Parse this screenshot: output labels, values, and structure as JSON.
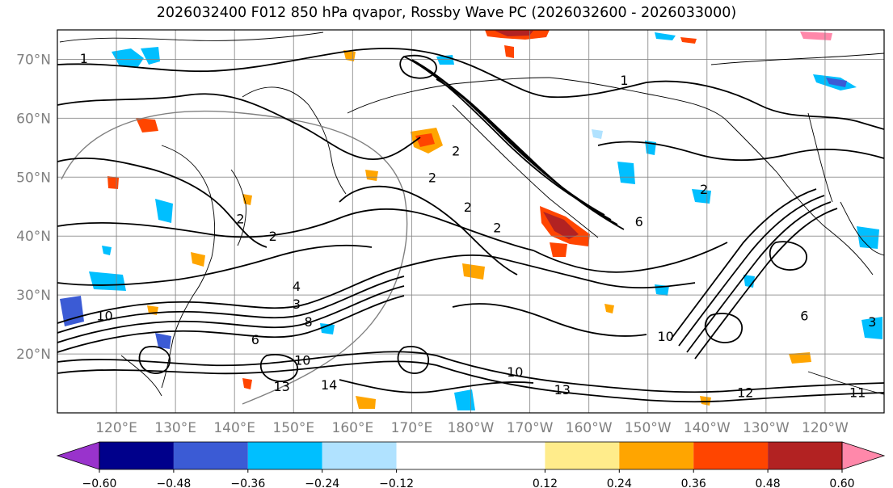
{
  "title": "2026032400 F012 850 hPa qvapor, Rossby Wave PC (2026032600 - 2026033000)",
  "map": {
    "lat_min": 10,
    "lat_max": 75,
    "lon_min": 110,
    "lon_max": 250,
    "lat_ticks": [
      {
        "value": 70,
        "label": "70°N"
      },
      {
        "value": 60,
        "label": "60°N"
      },
      {
        "value": 50,
        "label": "50°N"
      },
      {
        "value": 40,
        "label": "40°N"
      },
      {
        "value": 30,
        "label": "30°N"
      },
      {
        "value": 20,
        "label": "20°N"
      }
    ],
    "lon_ticks": [
      {
        "value": 120,
        "label": "120°E"
      },
      {
        "value": 130,
        "label": "130°E"
      },
      {
        "value": 140,
        "label": "140°E"
      },
      {
        "value": 150,
        "label": "150°E"
      },
      {
        "value": 160,
        "label": "160°E"
      },
      {
        "value": 170,
        "label": "170°E"
      },
      {
        "value": 180,
        "label": "180°W"
      },
      {
        "value": 190,
        "label": "170°W"
      },
      {
        "value": 200,
        "label": "160°W"
      },
      {
        "value": 210,
        "label": "150°W"
      },
      {
        "value": 220,
        "label": "140°W"
      },
      {
        "value": 230,
        "label": "130°W"
      },
      {
        "value": 240,
        "label": "120°W"
      }
    ],
    "contour_labels": [
      {
        "lon": 114.5,
        "lat": 70.2,
        "text": "1"
      },
      {
        "lon": 141.0,
        "lat": 43.0,
        "text": "2"
      },
      {
        "lon": 146.5,
        "lat": 40.0,
        "text": "2"
      },
      {
        "lon": 173.5,
        "lat": 50.0,
        "text": "2"
      },
      {
        "lon": 177.5,
        "lat": 54.5,
        "text": "2"
      },
      {
        "lon": 179.5,
        "lat": 45.0,
        "text": "2"
      },
      {
        "lon": 184.5,
        "lat": 41.5,
        "text": "2"
      },
      {
        "lon": 206.0,
        "lat": 66.5,
        "text": "1"
      },
      {
        "lon": 208.5,
        "lat": 42.5,
        "text": "6"
      },
      {
        "lon": 219.5,
        "lat": 48.0,
        "text": "2"
      },
      {
        "lon": 248.0,
        "lat": 25.5,
        "text": "3"
      },
      {
        "lon": 236.5,
        "lat": 26.5,
        "text": "6"
      },
      {
        "lon": 150.5,
        "lat": 31.5,
        "text": "4"
      },
      {
        "lon": 150.5,
        "lat": 28.5,
        "text": "3"
      },
      {
        "lon": 152.5,
        "lat": 25.5,
        "text": "8"
      },
      {
        "lon": 118.0,
        "lat": 26.5,
        "text": "10"
      },
      {
        "lon": 143.5,
        "lat": 22.5,
        "text": "6"
      },
      {
        "lon": 151.5,
        "lat": 19.0,
        "text": "10"
      },
      {
        "lon": 148.0,
        "lat": 14.5,
        "text": "13"
      },
      {
        "lon": 156.0,
        "lat": 14.8,
        "text": "14"
      },
      {
        "lon": 187.5,
        "lat": 17.0,
        "text": "10"
      },
      {
        "lon": 195.5,
        "lat": 14.0,
        "text": "13"
      },
      {
        "lon": 245.5,
        "lat": 13.5,
        "text": "11"
      },
      {
        "lon": 226.5,
        "lat": 13.5,
        "text": "12"
      },
      {
        "lon": 213.0,
        "lat": 23.0,
        "text": "10"
      }
    ]
  },
  "colorbar": {
    "bins": [
      {
        "from": -0.72,
        "to": -0.6,
        "color": "#9933cc"
      },
      {
        "from": -0.6,
        "to": -0.48,
        "color": "#00008b"
      },
      {
        "from": -0.48,
        "to": -0.36,
        "color": "#3b5bd5"
      },
      {
        "from": -0.36,
        "to": -0.24,
        "color": "#00bfff"
      },
      {
        "from": -0.24,
        "to": -0.12,
        "color": "#b0e2ff"
      },
      {
        "from": -0.12,
        "to": 0.12,
        "color": "#ffffff"
      },
      {
        "from": 0.12,
        "to": 0.24,
        "color": "#ffec8b"
      },
      {
        "from": 0.24,
        "to": 0.36,
        "color": "#ffa500"
      },
      {
        "from": 0.36,
        "to": 0.48,
        "color": "#ff4500"
      },
      {
        "from": 0.48,
        "to": 0.6,
        "color": "#b22222"
      },
      {
        "from": 0.6,
        "to": 0.72,
        "color": "#ff88aa"
      }
    ],
    "ticks": [
      {
        "value": -0.6,
        "label": "−0.60"
      },
      {
        "value": -0.48,
        "label": "−0.48"
      },
      {
        "value": -0.36,
        "label": "−0.36"
      },
      {
        "value": -0.24,
        "label": "−0.24"
      },
      {
        "value": -0.12,
        "label": "−0.12"
      },
      {
        "value": 0.12,
        "label": "0.12"
      },
      {
        "value": 0.24,
        "label": "0.24"
      },
      {
        "value": 0.36,
        "label": "0.36"
      },
      {
        "value": 0.48,
        "label": "0.48"
      },
      {
        "value": 0.6,
        "label": "0.60"
      }
    ]
  },
  "colors": {
    "grid": "#808080",
    "frame": "#000000",
    "contour": "#000000",
    "coast": "#000000"
  }
}
